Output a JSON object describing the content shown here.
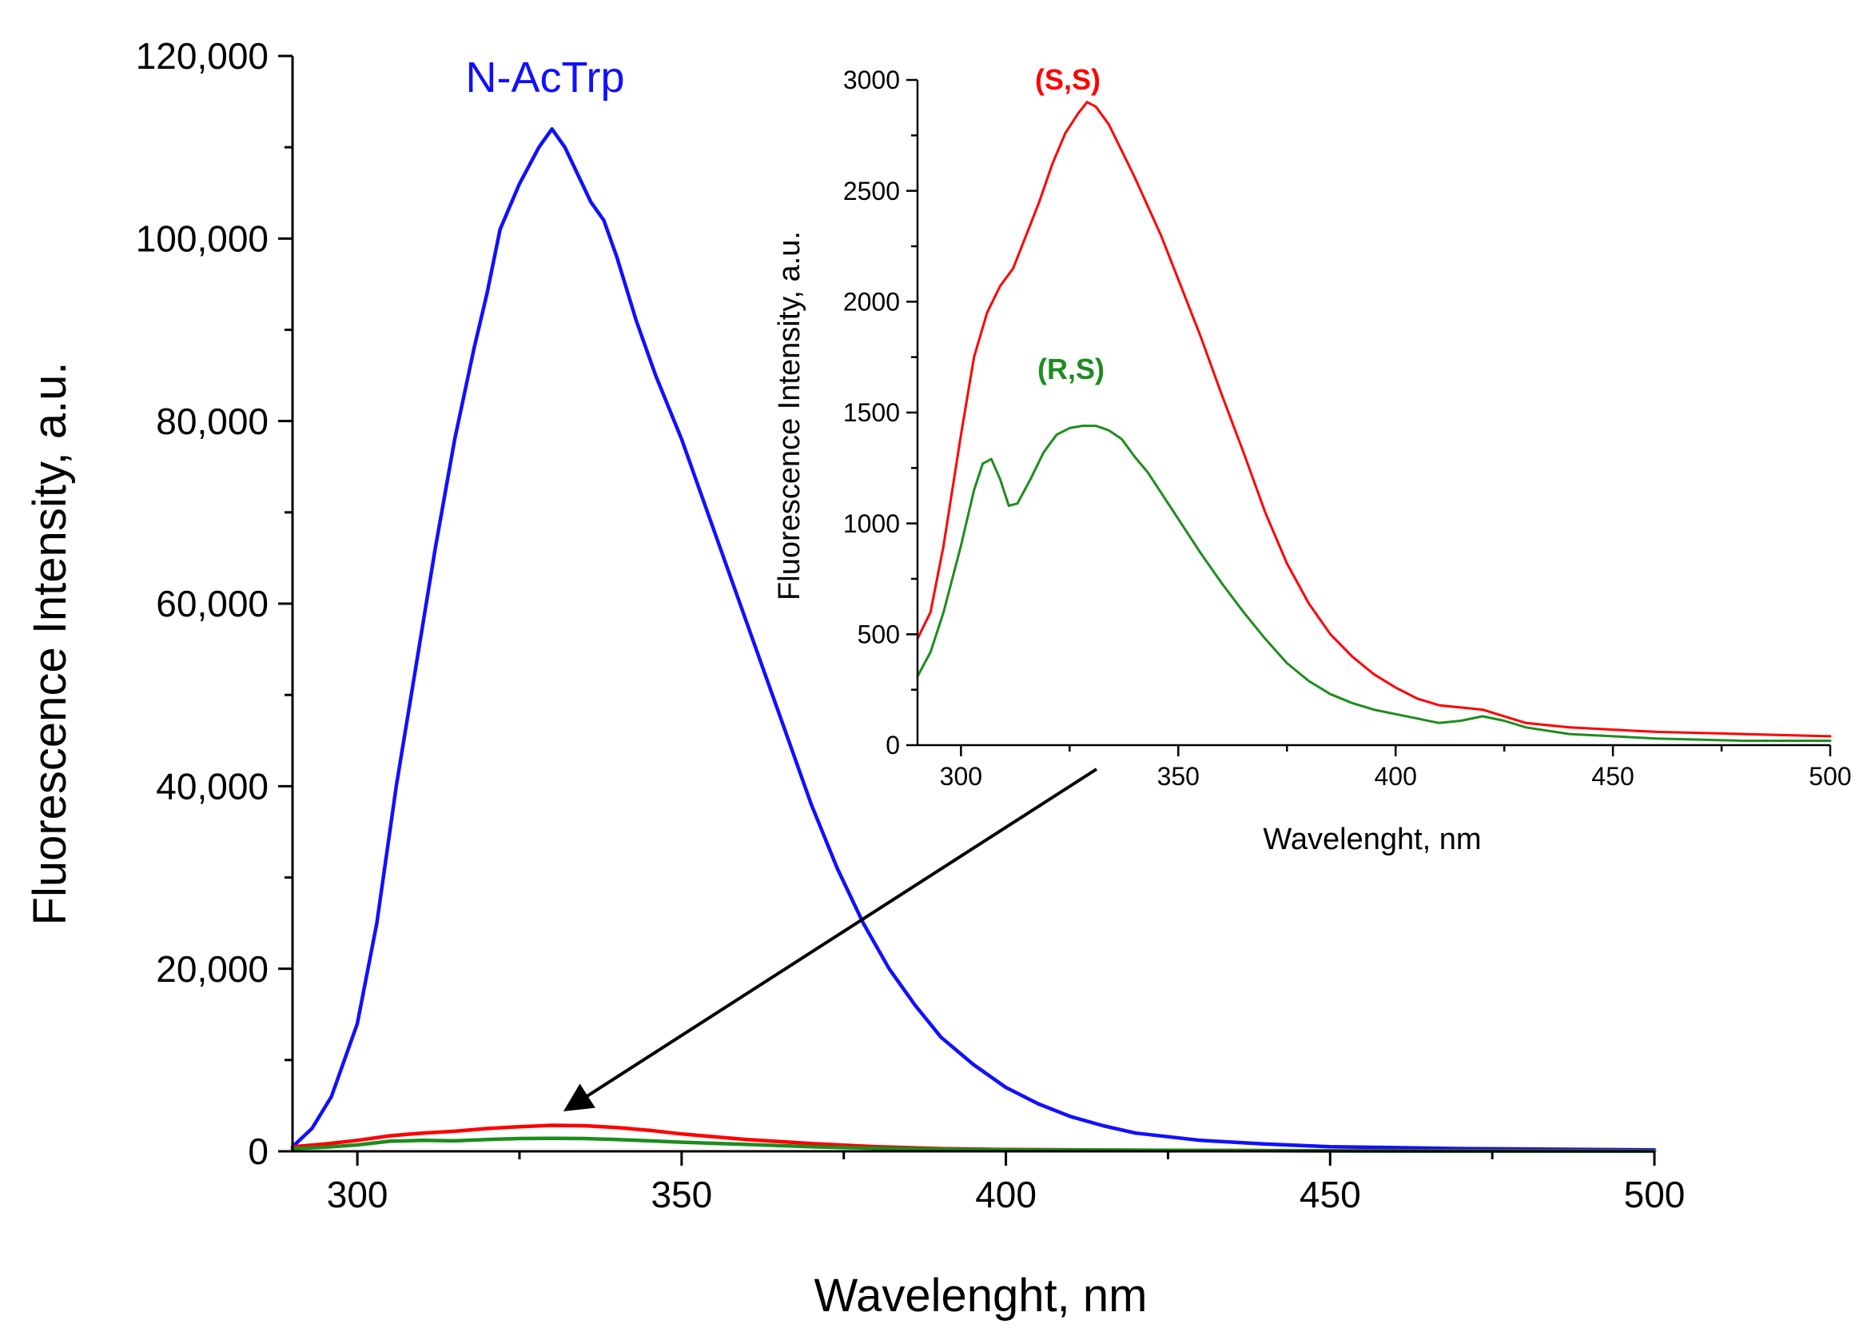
{
  "chart_data": [
    {
      "type": "line",
      "panel": "main",
      "xlabel": "Wavelenght, nm",
      "ylabel": "Fluorescence Intensity, a.u.",
      "xlim": [
        290,
        500
      ],
      "ylim": [
        0,
        120000
      ],
      "x_ticks": [
        300,
        350,
        400,
        450,
        500
      ],
      "y_ticks": [
        0,
        20000,
        40000,
        60000,
        80000,
        100000,
        120000
      ],
      "y_tick_labels": [
        "0",
        "20,000",
        "40,000",
        "60,000",
        "80,000",
        "100,000",
        "120,000"
      ],
      "grid": false,
      "series": [
        {
          "name": "N-AcTrp",
          "color": "#1010ff",
          "x": [
            290,
            293,
            296,
            300,
            303,
            306,
            309,
            312,
            315,
            318,
            320,
            322,
            325,
            328,
            330,
            332,
            334,
            336,
            338,
            340,
            343,
            346,
            350,
            354,
            358,
            362,
            366,
            370,
            374,
            378,
            382,
            386,
            390,
            395,
            400,
            405,
            410,
            415,
            420,
            430,
            440,
            450,
            460,
            470,
            480,
            490,
            500
          ],
          "y": [
            500,
            2500,
            6000,
            14000,
            25000,
            40000,
            53000,
            66000,
            78000,
            88000,
            94000,
            101000,
            106000,
            110000,
            112000,
            110000,
            107000,
            104000,
            102000,
            98000,
            91000,
            85000,
            78000,
            70000,
            62000,
            54000,
            46000,
            38000,
            31000,
            25000,
            20000,
            16000,
            12500,
            9500,
            7000,
            5200,
            3800,
            2800,
            2000,
            1200,
            800,
            500,
            400,
            300,
            250,
            200,
            150
          ]
        },
        {
          "name": "(S,S)",
          "color": "#ff0000",
          "x": [
            290,
            295,
            300,
            305,
            310,
            315,
            320,
            325,
            330,
            335,
            340,
            345,
            350,
            360,
            370,
            380,
            390,
            400,
            420,
            450,
            500
          ],
          "y": [
            500,
            800,
            1200,
            1700,
            2000,
            2200,
            2500,
            2700,
            2850,
            2800,
            2600,
            2300,
            1900,
            1300,
            850,
            500,
            300,
            200,
            120,
            60,
            40
          ]
        },
        {
          "name": "(R,S)",
          "color": "#1e8c1e",
          "x": [
            290,
            295,
            300,
            305,
            310,
            315,
            320,
            325,
            330,
            335,
            340,
            345,
            350,
            360,
            370,
            380,
            390,
            400,
            420,
            450,
            500
          ],
          "y": [
            300,
            450,
            700,
            1100,
            1200,
            1150,
            1300,
            1400,
            1430,
            1400,
            1300,
            1150,
            1000,
            750,
            500,
            330,
            230,
            150,
            120,
            40,
            20
          ]
        }
      ]
    },
    {
      "type": "line",
      "panel": "inset",
      "xlabel": "Wavelenght, nm",
      "ylabel": "Fluorescence Intensity, a.u.",
      "xlim": [
        290,
        500
      ],
      "ylim": [
        0,
        3000
      ],
      "x_ticks": [
        300,
        350,
        400,
        450,
        500
      ],
      "y_ticks": [
        0,
        500,
        1000,
        1500,
        2000,
        2500,
        3000
      ],
      "grid": false,
      "series": [
        {
          "name": "(S,S)",
          "color": "#ff0000",
          "x": [
            290,
            293,
            296,
            300,
            303,
            306,
            309,
            312,
            315,
            318,
            321,
            324,
            327,
            329,
            331,
            334,
            337,
            340,
            343,
            346,
            350,
            355,
            360,
            365,
            370,
            375,
            380,
            385,
            390,
            395,
            400,
            405,
            410,
            415,
            420,
            425,
            430,
            440,
            450,
            460,
            470,
            480,
            490,
            500
          ],
          "y": [
            480,
            600,
            900,
            1400,
            1750,
            1950,
            2070,
            2150,
            2300,
            2450,
            2620,
            2760,
            2850,
            2900,
            2880,
            2800,
            2680,
            2560,
            2430,
            2300,
            2100,
            1850,
            1580,
            1320,
            1050,
            820,
            640,
            500,
            400,
            320,
            260,
            210,
            180,
            170,
            160,
            130,
            100,
            80,
            70,
            60,
            55,
            50,
            45,
            40
          ]
        },
        {
          "name": "(R,S)",
          "color": "#1e8c1e",
          "x": [
            290,
            293,
            296,
            300,
            303,
            305,
            307,
            309,
            311,
            313,
            316,
            319,
            322,
            325,
            328,
            331,
            334,
            337,
            340,
            343,
            346,
            350,
            355,
            360,
            365,
            370,
            375,
            380,
            385,
            390,
            395,
            400,
            405,
            410,
            415,
            420,
            425,
            430,
            440,
            450,
            460,
            470,
            480,
            490,
            500
          ],
          "y": [
            310,
            420,
            600,
            900,
            1150,
            1270,
            1290,
            1200,
            1080,
            1090,
            1200,
            1320,
            1400,
            1430,
            1440,
            1440,
            1420,
            1380,
            1300,
            1230,
            1140,
            1020,
            870,
            730,
            600,
            480,
            370,
            290,
            230,
            190,
            160,
            140,
            120,
            100,
            110,
            130,
            110,
            80,
            50,
            40,
            30,
            25,
            20,
            20,
            20
          ]
        }
      ]
    }
  ]
}
